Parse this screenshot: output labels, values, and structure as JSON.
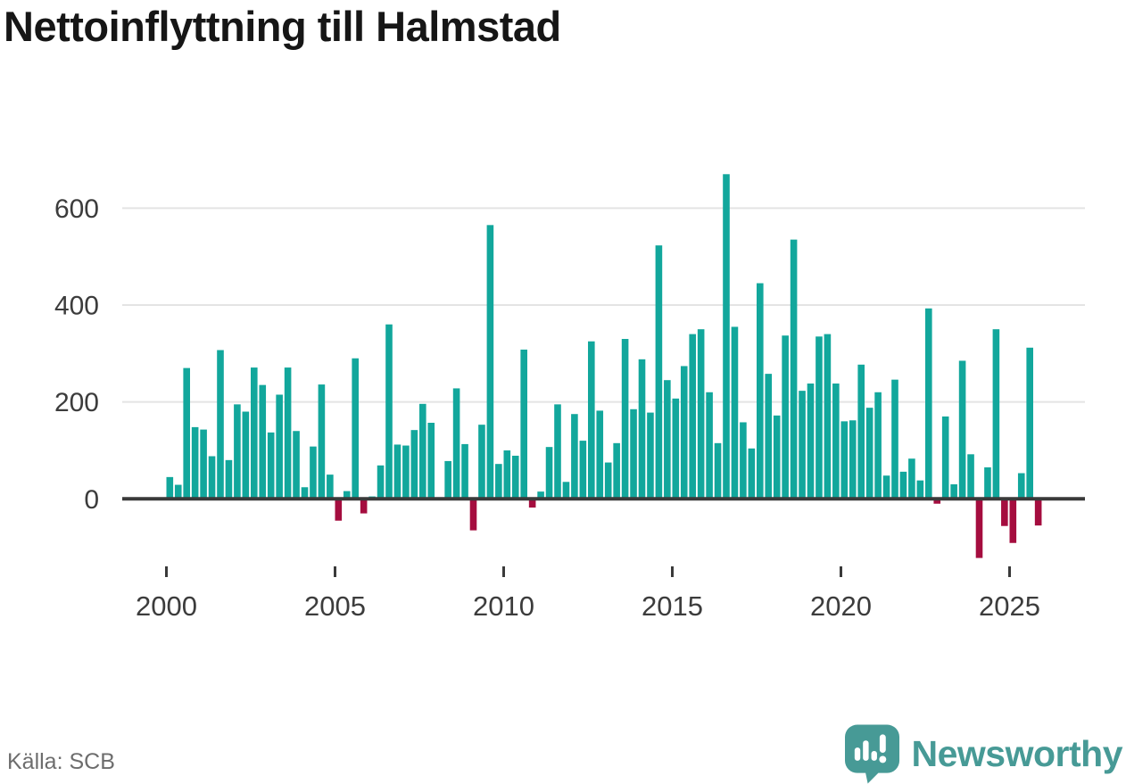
{
  "title": "Nettoinflyttning till Halmstad",
  "source": "Källa: SCB",
  "brand": {
    "name": "Newsworthy"
  },
  "colors": {
    "positive": "#12a79c",
    "negative": "#a50d3f",
    "grid": "#e4e4e4",
    "axis": "#3a3a3a",
    "tick_text": "#3c3c3c",
    "title_text": "#161616",
    "source_text": "#6d6d6d",
    "brand_teal": "#479a96"
  },
  "chart_data": {
    "type": "bar",
    "title": "Nettoinflyttning till Halmstad",
    "xlabel": "",
    "ylabel": "",
    "ylim": [
      -150,
      700
    ],
    "grid": "horizontal",
    "legend": "none",
    "x_ticks": [
      2000,
      2005,
      2010,
      2015,
      2020,
      2025
    ],
    "y_ticks": [
      0,
      200,
      400,
      600
    ],
    "quarter_period": "Q1-Q4",
    "years": [
      {
        "year": 2000,
        "q": [
          45,
          29,
          270,
          148
        ]
      },
      {
        "year": 2001,
        "q": [
          143,
          88,
          307,
          80
        ]
      },
      {
        "year": 2002,
        "q": [
          195,
          180,
          271,
          235
        ]
      },
      {
        "year": 2003,
        "q": [
          137,
          215,
          271,
          140
        ]
      },
      {
        "year": 2004,
        "q": [
          24,
          108,
          236,
          50
        ]
      },
      {
        "year": 2005,
        "q": [
          -45,
          16,
          290,
          -30
        ]
      },
      {
        "year": 2006,
        "q": [
          5,
          69,
          360,
          112
        ]
      },
      {
        "year": 2007,
        "q": [
          110,
          142,
          196,
          157
        ]
      },
      {
        "year": 2008,
        "q": [
          2,
          78,
          228,
          113
        ]
      },
      {
        "year": 2009,
        "q": [
          -65,
          153,
          565,
          72
        ]
      },
      {
        "year": 2010,
        "q": [
          100,
          89,
          308,
          -18
        ]
      },
      {
        "year": 2011,
        "q": [
          15,
          107,
          195,
          35
        ]
      },
      {
        "year": 2012,
        "q": [
          175,
          120,
          325,
          182
        ]
      },
      {
        "year": 2013,
        "q": [
          75,
          115,
          330,
          185
        ]
      },
      {
        "year": 2014,
        "q": [
          288,
          178,
          523,
          245
        ]
      },
      {
        "year": 2015,
        "q": [
          207,
          274,
          340,
          350
        ]
      },
      {
        "year": 2016,
        "q": [
          220,
          115,
          670,
          355
        ]
      },
      {
        "year": 2017,
        "q": [
          158,
          104,
          445,
          258
        ]
      },
      {
        "year": 2018,
        "q": [
          172,
          337,
          535,
          223
        ]
      },
      {
        "year": 2019,
        "q": [
          238,
          335,
          340,
          238
        ]
      },
      {
        "year": 2020,
        "q": [
          160,
          162,
          277,
          188
        ]
      },
      {
        "year": 2021,
        "q": [
          220,
          48,
          246,
          56
        ]
      },
      {
        "year": 2022,
        "q": [
          83,
          38,
          393,
          -10
        ]
      },
      {
        "year": 2023,
        "q": [
          170,
          30,
          285,
          92
        ]
      },
      {
        "year": 2024,
        "q": [
          -122,
          65,
          350,
          -56
        ]
      },
      {
        "year": 2025,
        "q": [
          -91,
          53,
          312,
          -55
        ]
      }
    ]
  }
}
